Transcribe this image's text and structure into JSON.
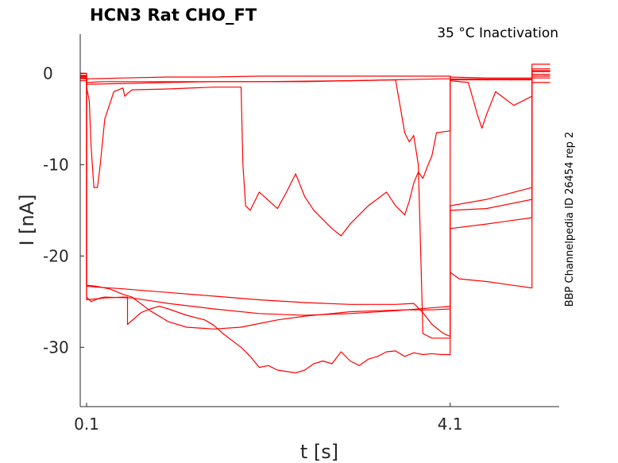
{
  "chart_data": {
    "type": "line",
    "title": "HCN3  Rat  CHO_FT",
    "subtitle": "35 °C  Inactivation",
    "xlabel": "t [s]",
    "ylabel": "I [nA]",
    "side_label": "BBP Channelpedia ID 26454 rep 2",
    "x_ticks": [
      0.1,
      4.1
    ],
    "x_tick_labels": [
      "0.1",
      "4.1"
    ],
    "y_ticks": [
      0,
      -10,
      -20,
      -30
    ],
    "y_tick_labels": [
      "0",
      "-10",
      "-20",
      "-30"
    ],
    "xlim": [
      0.03,
      5.3
    ],
    "ylim": [
      -36.5,
      4.3
    ],
    "grid": false,
    "color": "#ff0000",
    "series": [
      {
        "x": [
          0.0,
          0.1,
          0.1,
          0.15,
          0.2,
          0.25,
          0.3,
          0.6,
          1.0,
          1.5,
          2.0,
          2.5,
          3.0,
          3.5,
          4.0,
          4.1,
          4.1,
          4.5,
          5.0,
          5.0,
          5.2
        ],
        "y": [
          -0.6,
          -0.6,
          -24.5,
          -25.0,
          -24.8,
          -24.6,
          -24.5,
          -24.6,
          -25.2,
          -25.8,
          -26.3,
          -26.5,
          -26.3,
          -26.0,
          -25.6,
          -25.5,
          -0.7,
          -0.7,
          -0.7,
          0.5,
          0.5
        ]
      },
      {
        "x": [
          0.0,
          0.1,
          0.1,
          0.2,
          0.35,
          0.5,
          0.6,
          0.8,
          1.0,
          1.2,
          1.5,
          1.8,
          2.0,
          2.2,
          2.5,
          2.8,
          3.0,
          3.3,
          3.6,
          3.9,
          4.1,
          4.1,
          4.5,
          5.0,
          5.0,
          5.2
        ],
        "y": [
          -0.5,
          -0.5,
          -23.2,
          -23.3,
          -23.6,
          -24.2,
          -24.5,
          -26.0,
          -27.2,
          -27.8,
          -28.0,
          -27.8,
          -27.4,
          -27.0,
          -26.6,
          -26.3,
          -26.1,
          -26.0,
          -25.9,
          -25.9,
          -25.8,
          -14.5,
          -13.8,
          -12.5,
          0.2,
          0.2
        ]
      },
      {
        "x": [
          0.0,
          0.1,
          0.1,
          0.3,
          0.5,
          0.55,
          0.55,
          0.7,
          0.8,
          0.9,
          1.0,
          1.2,
          1.4,
          1.5,
          1.6,
          1.8,
          1.9,
          2.0,
          2.1,
          2.2,
          2.4,
          2.5,
          2.6,
          2.7,
          2.8,
          2.9,
          3.0,
          3.1,
          3.2,
          3.3,
          3.4,
          3.5,
          3.6,
          3.7,
          3.8,
          3.9,
          4.0,
          4.1,
          4.1,
          4.5,
          5.0,
          5.0,
          5.2
        ],
        "y": [
          -0.8,
          -0.8,
          -24.8,
          -24.6,
          -24.5,
          -24.5,
          -27.5,
          -26.2,
          -25.8,
          -25.5,
          -25.8,
          -26.5,
          -27.0,
          -27.6,
          -28.5,
          -30.0,
          -31.0,
          -32.2,
          -32.0,
          -32.5,
          -32.8,
          -32.5,
          -31.8,
          -31.5,
          -31.8,
          -30.5,
          -31.5,
          -32.0,
          -31.3,
          -31.0,
          -30.5,
          -30.4,
          -31.0,
          -30.6,
          -30.8,
          -30.7,
          -30.8,
          -30.8,
          -15.0,
          -14.8,
          -13.8,
          0.3,
          0.3
        ]
      },
      {
        "x": [
          0.0,
          0.1,
          0.1,
          0.2,
          0.5,
          1.0,
          1.5,
          2.0,
          2.5,
          3.0,
          3.5,
          3.7,
          3.8,
          3.9,
          4.0,
          4.05,
          4.1,
          4.1,
          4.5,
          5.0,
          5.0,
          5.2
        ],
        "y": [
          -0.4,
          -0.4,
          -23.3,
          -23.4,
          -23.6,
          -24.0,
          -24.4,
          -24.8,
          -25.1,
          -25.3,
          -25.3,
          -25.2,
          -26.2,
          -27.5,
          -28.3,
          -28.6,
          -28.8,
          -17.0,
          -16.5,
          -15.8,
          1.0,
          1.0
        ]
      },
      {
        "x": [
          0.0,
          0.1,
          0.1,
          0.3,
          1.0,
          2.0,
          3.0,
          3.5,
          3.6,
          3.65,
          3.7,
          3.75,
          3.8,
          3.9,
          4.1,
          4.1,
          4.2,
          4.5,
          5.0,
          5.0,
          5.2
        ],
        "y": [
          0.0,
          0.0,
          -1.0,
          -0.9,
          -0.9,
          -0.9,
          -0.8,
          -0.7,
          -6.5,
          -7.5,
          -6.8,
          -10.0,
          -28.5,
          -29.0,
          -29.0,
          -21.8,
          -22.5,
          -22.8,
          -23.5,
          -0.5,
          -0.5
        ]
      },
      {
        "x": [
          0.0,
          0.1,
          0.1,
          0.13,
          0.15,
          0.18,
          0.22,
          0.25,
          0.3,
          0.4,
          0.5,
          0.52,
          0.55,
          0.6,
          1.0,
          1.5,
          1.8,
          1.82,
          1.85,
          1.9,
          2.0,
          2.2,
          2.3,
          2.4,
          2.5,
          2.6,
          2.8,
          2.9,
          3.0,
          3.2,
          3.4,
          3.5,
          3.6,
          3.65,
          3.7,
          3.75,
          3.8,
          3.85,
          3.9,
          3.95,
          4.1,
          4.1,
          4.3,
          4.4,
          4.45,
          4.5,
          4.6,
          4.8,
          5.0,
          5.0,
          5.2
        ],
        "y": [
          -0.3,
          -0.3,
          -1.5,
          -3.0,
          -8.0,
          -12.5,
          -12.5,
          -10.0,
          -5.0,
          -2.0,
          -1.6,
          -2.5,
          -2.2,
          -1.8,
          -1.7,
          -1.5,
          -1.5,
          -10.0,
          -14.5,
          -15.0,
          -13.0,
          -14.8,
          -13.0,
          -11.0,
          -13.5,
          -15.0,
          -17.0,
          -17.8,
          -16.5,
          -14.5,
          -13.0,
          -14.5,
          -15.5,
          -14.0,
          -12.0,
          -10.8,
          -11.5,
          -10.2,
          -9.0,
          -6.5,
          -6.3,
          -0.8,
          -1.0,
          -4.5,
          -6.0,
          -4.5,
          -2.0,
          -3.5,
          -2.5,
          -0.3,
          -0.3
        ]
      },
      {
        "x": [
          0.0,
          0.1,
          0.1,
          0.5,
          1.0,
          1.5,
          2.0,
          2.5,
          3.0,
          3.5,
          4.0,
          4.1,
          4.1,
          4.5,
          5.0,
          5.0,
          5.2
        ],
        "y": [
          -0.2,
          -0.2,
          -1.2,
          -1.1,
          -1.0,
          -0.9,
          -0.9,
          -0.9,
          -0.8,
          -0.7,
          -0.6,
          -0.6,
          -0.4,
          -0.5,
          -0.5,
          -1.0,
          -1.0
        ]
      },
      {
        "x": [
          0.0,
          0.1,
          0.1,
          0.5,
          1.0,
          1.5,
          2.0,
          2.5,
          3.0,
          3.5,
          4.0,
          4.1,
          4.1,
          5.0,
          5.0,
          5.2
        ],
        "y": [
          0.0,
          0.0,
          -0.6,
          -0.5,
          -0.4,
          -0.4,
          -0.3,
          -0.3,
          -0.3,
          -0.3,
          -0.3,
          -0.3,
          -0.6,
          -0.6,
          -0.1,
          -0.1
        ]
      }
    ]
  }
}
